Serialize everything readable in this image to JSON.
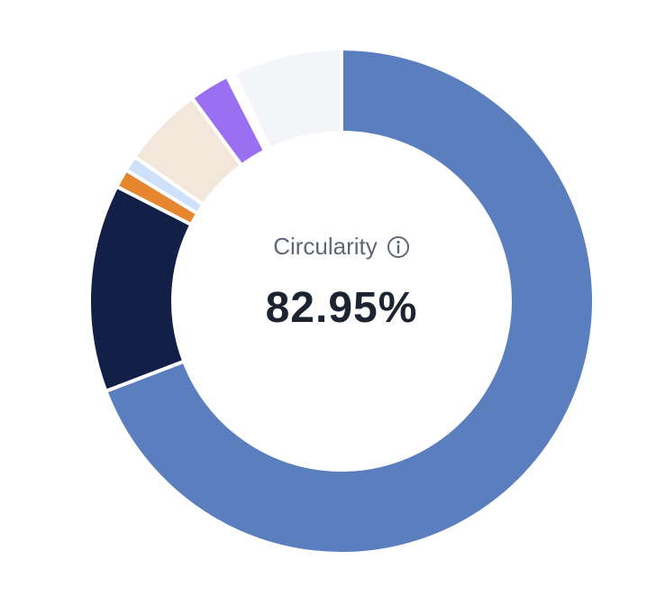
{
  "chart_data": {
    "type": "pie",
    "variant": "donut",
    "center_label": "Circularity",
    "center_value": "82.95%",
    "slices": [
      {
        "value": 69.2,
        "color": "#5b7fbe"
      },
      {
        "value": 13.3,
        "color": "#121f47"
      },
      {
        "value": 1.2,
        "color": "#e6862e"
      },
      {
        "value": 1.0,
        "color": "#cfe0fb"
      },
      {
        "value": 5.2,
        "color": "#f3e7db"
      },
      {
        "value": 2.6,
        "color": "#9b6ff2"
      },
      {
        "value": 0.5,
        "color": "#ffffff"
      },
      {
        "value": 7.0,
        "color": "#f4f5f8"
      }
    ]
  },
  "icons": {
    "info": "info-circle-icon"
  }
}
